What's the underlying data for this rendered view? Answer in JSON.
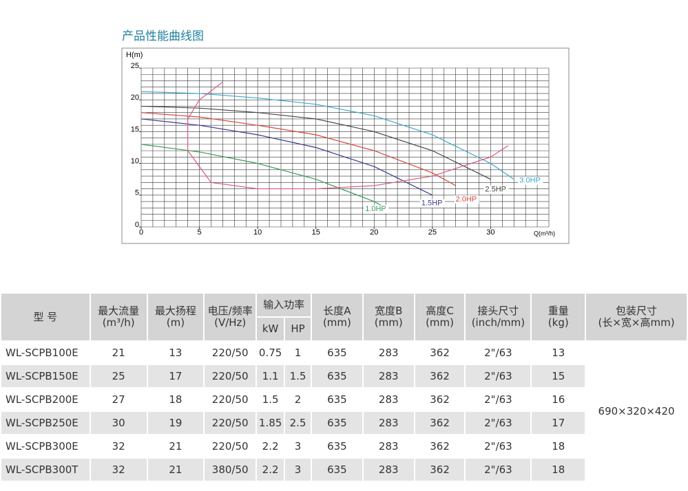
{
  "chart_data": {
    "type": "line",
    "title": "产品性能曲线图",
    "y_label": "H(m)",
    "x_label": "Q(m³/h)",
    "xlim": [
      0,
      35
    ],
    "ylim": [
      0,
      25
    ],
    "xticks": [
      0,
      5,
      10,
      15,
      20,
      25,
      30
    ],
    "yticks": [
      0,
      5,
      10,
      15,
      20,
      25
    ],
    "grid": true,
    "series": [
      {
        "name": "1.0HP",
        "color": "#3a9a5a",
        "x": [
          0,
          5,
          10,
          15,
          20,
          21
        ],
        "values": [
          13,
          11.8,
          10,
          7.5,
          4,
          3
        ]
      },
      {
        "name": "1.5HP",
        "color": "#3b3b8f",
        "x": [
          0,
          5,
          10,
          15,
          20,
          25
        ],
        "values": [
          17,
          16,
          14.5,
          12.5,
          9.5,
          5
        ]
      },
      {
        "name": "2.0HP",
        "color": "#d9463f",
        "x": [
          0,
          5,
          10,
          15,
          20,
          25,
          27
        ],
        "values": [
          18,
          17.3,
          16,
          14.5,
          12,
          8.5,
          6.5
        ]
      },
      {
        "name": "2.5HP",
        "color": "#444444",
        "x": [
          0,
          5,
          10,
          15,
          20,
          25,
          30
        ],
        "values": [
          19,
          18.7,
          18,
          17,
          15,
          12,
          7.5
        ]
      },
      {
        "name": "3.0HP",
        "color": "#3aa8c8",
        "x": [
          0,
          5,
          10,
          15,
          20,
          25,
          30,
          32
        ],
        "values": [
          21.3,
          21,
          20.3,
          19.3,
          17.5,
          14.5,
          10,
          7.5
        ]
      },
      {
        "color": "#d9587f",
        "x": [
          7,
          5,
          4,
          4,
          6,
          10,
          15,
          20,
          25,
          30,
          31.5
        ],
        "values": [
          22.8,
          20,
          17,
          12,
          7,
          6,
          6,
          6.5,
          8,
          11,
          12.8
        ]
      }
    ]
  },
  "table": {
    "headers": [
      [
        "型 号"
      ],
      [
        "最大流量",
        "(m³/h)"
      ],
      [
        "最大扬程",
        "(m)"
      ],
      [
        "电压/频率",
        "(V/Hz)"
      ],
      [
        "输入功率"
      ],
      [
        "长度A",
        "(mm)"
      ],
      [
        "宽度B",
        "(mm)"
      ],
      [
        "高度C",
        "(mm)"
      ],
      [
        "接头尺寸",
        "(inch/mm)"
      ],
      [
        "重量",
        "(kg)"
      ],
      [
        "包装尺寸",
        "(长×宽×高mm)"
      ]
    ],
    "subheaders": [
      "kW",
      "HP"
    ],
    "rows": [
      [
        "WL-SCPB100E",
        "21",
        "13",
        "220/50",
        "0.75",
        "1",
        "635",
        "283",
        "362",
        "2\"/63",
        "13"
      ],
      [
        "WL-SCPB150E",
        "25",
        "17",
        "220/50",
        "1.1",
        "1.5",
        "635",
        "283",
        "362",
        "2\"/63",
        "15"
      ],
      [
        "WL-SCPB200E",
        "27",
        "18",
        "220/50",
        "1.5",
        "2",
        "635",
        "283",
        "362",
        "2\"/63",
        "16"
      ],
      [
        "WL-SCPB250E",
        "30",
        "19",
        "220/50",
        "1.85",
        "2.5",
        "635",
        "283",
        "362",
        "2\"/63",
        "17"
      ],
      [
        "WL-SCPB300E",
        "32",
        "21",
        "220/50",
        "2.2",
        "3",
        "635",
        "283",
        "362",
        "2\"/63",
        "18"
      ],
      [
        "WL-SCPB300T",
        "32",
        "21",
        "380/50",
        "2.2",
        "3",
        "635",
        "283",
        "362",
        "2\"/63",
        "18"
      ]
    ],
    "package_size": "690×320×420"
  }
}
